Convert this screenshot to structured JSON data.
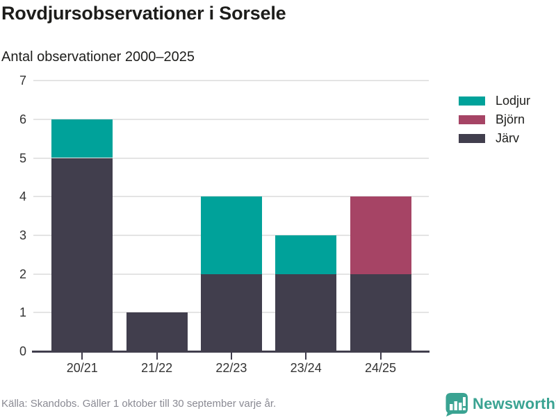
{
  "chart_data": {
    "type": "bar",
    "stacked": true,
    "title": "Rovdjursobservationer i Sorsele",
    "subtitle": "Antal observationer 2000–2025",
    "categories": [
      "20/21",
      "21/22",
      "22/23",
      "23/24",
      "24/25"
    ],
    "series": [
      {
        "name": "Lodjur",
        "color": "#00a29a",
        "values": [
          1,
          0,
          2,
          1,
          0
        ]
      },
      {
        "name": "Björn",
        "color": "#a64465",
        "values": [
          0,
          0,
          0,
          0,
          2
        ]
      },
      {
        "name": "Järv",
        "color": "#413e4d",
        "values": [
          5,
          1,
          2,
          2,
          2
        ]
      }
    ],
    "stack_order": [
      "Järv",
      "Björn",
      "Lodjur"
    ],
    "totals": [
      6,
      1,
      4,
      3,
      4
    ],
    "ylim": [
      0,
      7
    ],
    "yticks": [
      0,
      1,
      2,
      3,
      4,
      5,
      6,
      7
    ],
    "grid": true,
    "legend_position": "right",
    "xlabel": "",
    "ylabel": ""
  },
  "footer": {
    "source": "Källa: Skandobs. Gäller 1 oktober till 30 september varje år."
  },
  "branding": {
    "name": "Newsworthy",
    "color": "#3aa392",
    "logo_icon": "newsworthy-speech-bubble-barchart-icon"
  }
}
